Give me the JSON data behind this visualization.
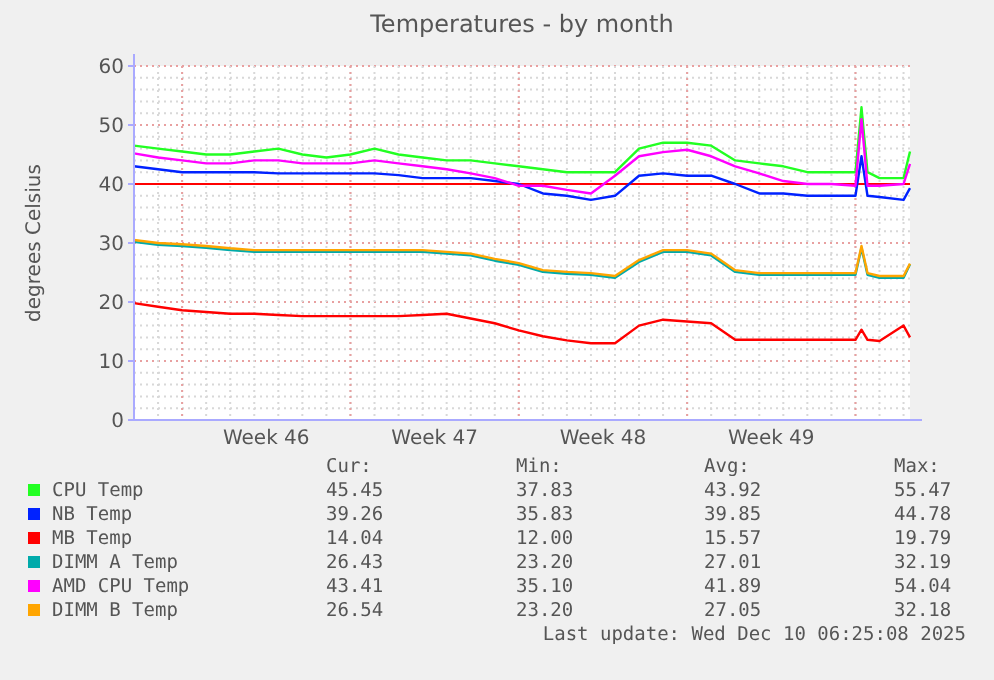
{
  "chart_data": {
    "type": "line",
    "title": "Temperatures - by month",
    "ylabel": "degrees Celsius",
    "x": [
      "2025-11-08",
      "2025-11-09",
      "2025-11-10",
      "2025-11-11",
      "2025-11-12",
      "2025-11-13",
      "2025-11-14",
      "2025-11-15",
      "2025-11-16",
      "2025-11-17",
      "2025-11-18",
      "2025-11-19",
      "2025-11-20",
      "2025-11-21",
      "2025-11-22",
      "2025-11-23",
      "2025-11-24",
      "2025-11-25",
      "2025-11-26",
      "2025-11-27",
      "2025-11-28",
      "2025-11-29",
      "2025-11-30",
      "2025-12-01",
      "2025-12-02",
      "2025-12-03",
      "2025-12-04",
      "2025-12-05",
      "2025-12-06",
      "2025-12-07",
      "2025-12-08T00:00",
      "2025-12-08T06:00",
      "2025-12-08T12:00",
      "2025-12-09",
      "2025-12-10",
      "2025-12-10T06:25"
    ],
    "series": [
      {
        "name": "CPU Temp",
        "color": "#22ff22",
        "values": [
          46.5,
          46,
          45.5,
          45,
          45,
          45.5,
          46,
          45,
          44.5,
          45,
          46,
          45,
          44.5,
          44,
          44,
          43.5,
          43,
          42.5,
          42,
          42,
          42,
          46,
          47,
          47,
          46.5,
          44,
          43.5,
          43,
          42,
          42,
          42,
          53,
          42,
          41,
          41,
          45.5
        ]
      },
      {
        "name": "NB Temp",
        "color": "#0022ff",
        "values": [
          43,
          42.5,
          42,
          42,
          42,
          42,
          41.8,
          41.8,
          41.8,
          41.8,
          41.8,
          41.5,
          41,
          41,
          41,
          40.5,
          40,
          38.4,
          38,
          37.3,
          38,
          41.4,
          41.8,
          41.4,
          41.4,
          40,
          38.4,
          38.4,
          38,
          38,
          38,
          44.7,
          38,
          37.8,
          37.3,
          39.3
        ]
      },
      {
        "name": "MB Temp",
        "color": "#ff0000",
        "values": [
          19.8,
          19.2,
          18.6,
          18.3,
          18,
          18,
          17.8,
          17.6,
          17.6,
          17.6,
          17.6,
          17.6,
          17.8,
          18,
          17.2,
          16.4,
          15.2,
          14.2,
          13.5,
          13,
          13,
          16,
          17,
          16.7,
          16.4,
          13.6,
          13.6,
          13.6,
          13.6,
          13.6,
          13.6,
          15.3,
          13.6,
          13.4,
          16,
          14
        ]
      },
      {
        "name": "DIMM A Temp",
        "color": "#00aaaa",
        "values": [
          30.2,
          29.7,
          29.5,
          29.2,
          28.8,
          28.5,
          28.5,
          28.5,
          28.5,
          28.5,
          28.5,
          28.5,
          28.5,
          28.2,
          27.9,
          27,
          26.3,
          25.1,
          24.8,
          24.6,
          24.1,
          26.8,
          28.5,
          28.5,
          27.9,
          25.1,
          24.6,
          24.6,
          24.6,
          24.6,
          24.6,
          29.2,
          24.6,
          24.1,
          24.1,
          26.4
        ]
      },
      {
        "name": "AMD CPU Temp",
        "color": "#ff00ff",
        "values": [
          45.2,
          44.5,
          44,
          43.5,
          43.5,
          44,
          44,
          43.5,
          43.5,
          43.5,
          44,
          43.5,
          43,
          42.5,
          41.8,
          41,
          39.7,
          39.7,
          39,
          38.4,
          41.4,
          44.7,
          45.4,
          45.8,
          44.7,
          43,
          41.8,
          40.5,
          40,
          40,
          39.7,
          51,
          39.7,
          39.7,
          40,
          43.4
        ]
      },
      {
        "name": "DIMM B Temp",
        "color": "#ffa500",
        "values": [
          30.5,
          30,
          29.8,
          29.5,
          29.1,
          28.8,
          28.8,
          28.8,
          28.8,
          28.8,
          28.8,
          28.8,
          28.8,
          28.5,
          28.2,
          27.3,
          26.6,
          25.4,
          25.1,
          24.9,
          24.4,
          27.1,
          28.8,
          28.8,
          28.2,
          25.4,
          24.9,
          24.9,
          24.9,
          24.9,
          24.9,
          29.5,
          24.9,
          24.4,
          24.4,
          26.5
        ]
      }
    ],
    "xlim": [
      "2025-11-08",
      "2025-12-10T06:25"
    ],
    "xticks": [
      {
        "value": "2025-11-13T12:00",
        "label": "Week 46"
      },
      {
        "value": "2025-11-20T12:00",
        "label": "Week 47"
      },
      {
        "value": "2025-11-27T12:00",
        "label": "Week 48"
      },
      {
        "value": "2025-12-04T12:00",
        "label": "Week 49"
      }
    ],
    "ylim": [
      0,
      60
    ],
    "yticks": [
      0,
      10,
      20,
      30,
      40,
      50,
      60
    ],
    "grid": true,
    "legend": "bottom",
    "line_style": "solid",
    "ref_lines": [
      {
        "axis": "y",
        "value": 40,
        "color": "#ff0000"
      }
    ],
    "annotations": [
      "Cur:",
      "Min:",
      "Avg:",
      "Max:",
      "45.45",
      "37.83",
      "43.92",
      "55.47",
      "39.26",
      "35.83",
      "39.85",
      "44.78",
      "14.04",
      "12.00",
      "15.57",
      "19.79",
      "26.43",
      "23.20",
      "27.01",
      "32.19",
      "43.41",
      "35.10",
      "41.89",
      "54.04",
      "26.54",
      "23.20",
      "27.05",
      "32.18",
      "Last update: Wed Dec 10 06:25:08 2025"
    ]
  }
}
